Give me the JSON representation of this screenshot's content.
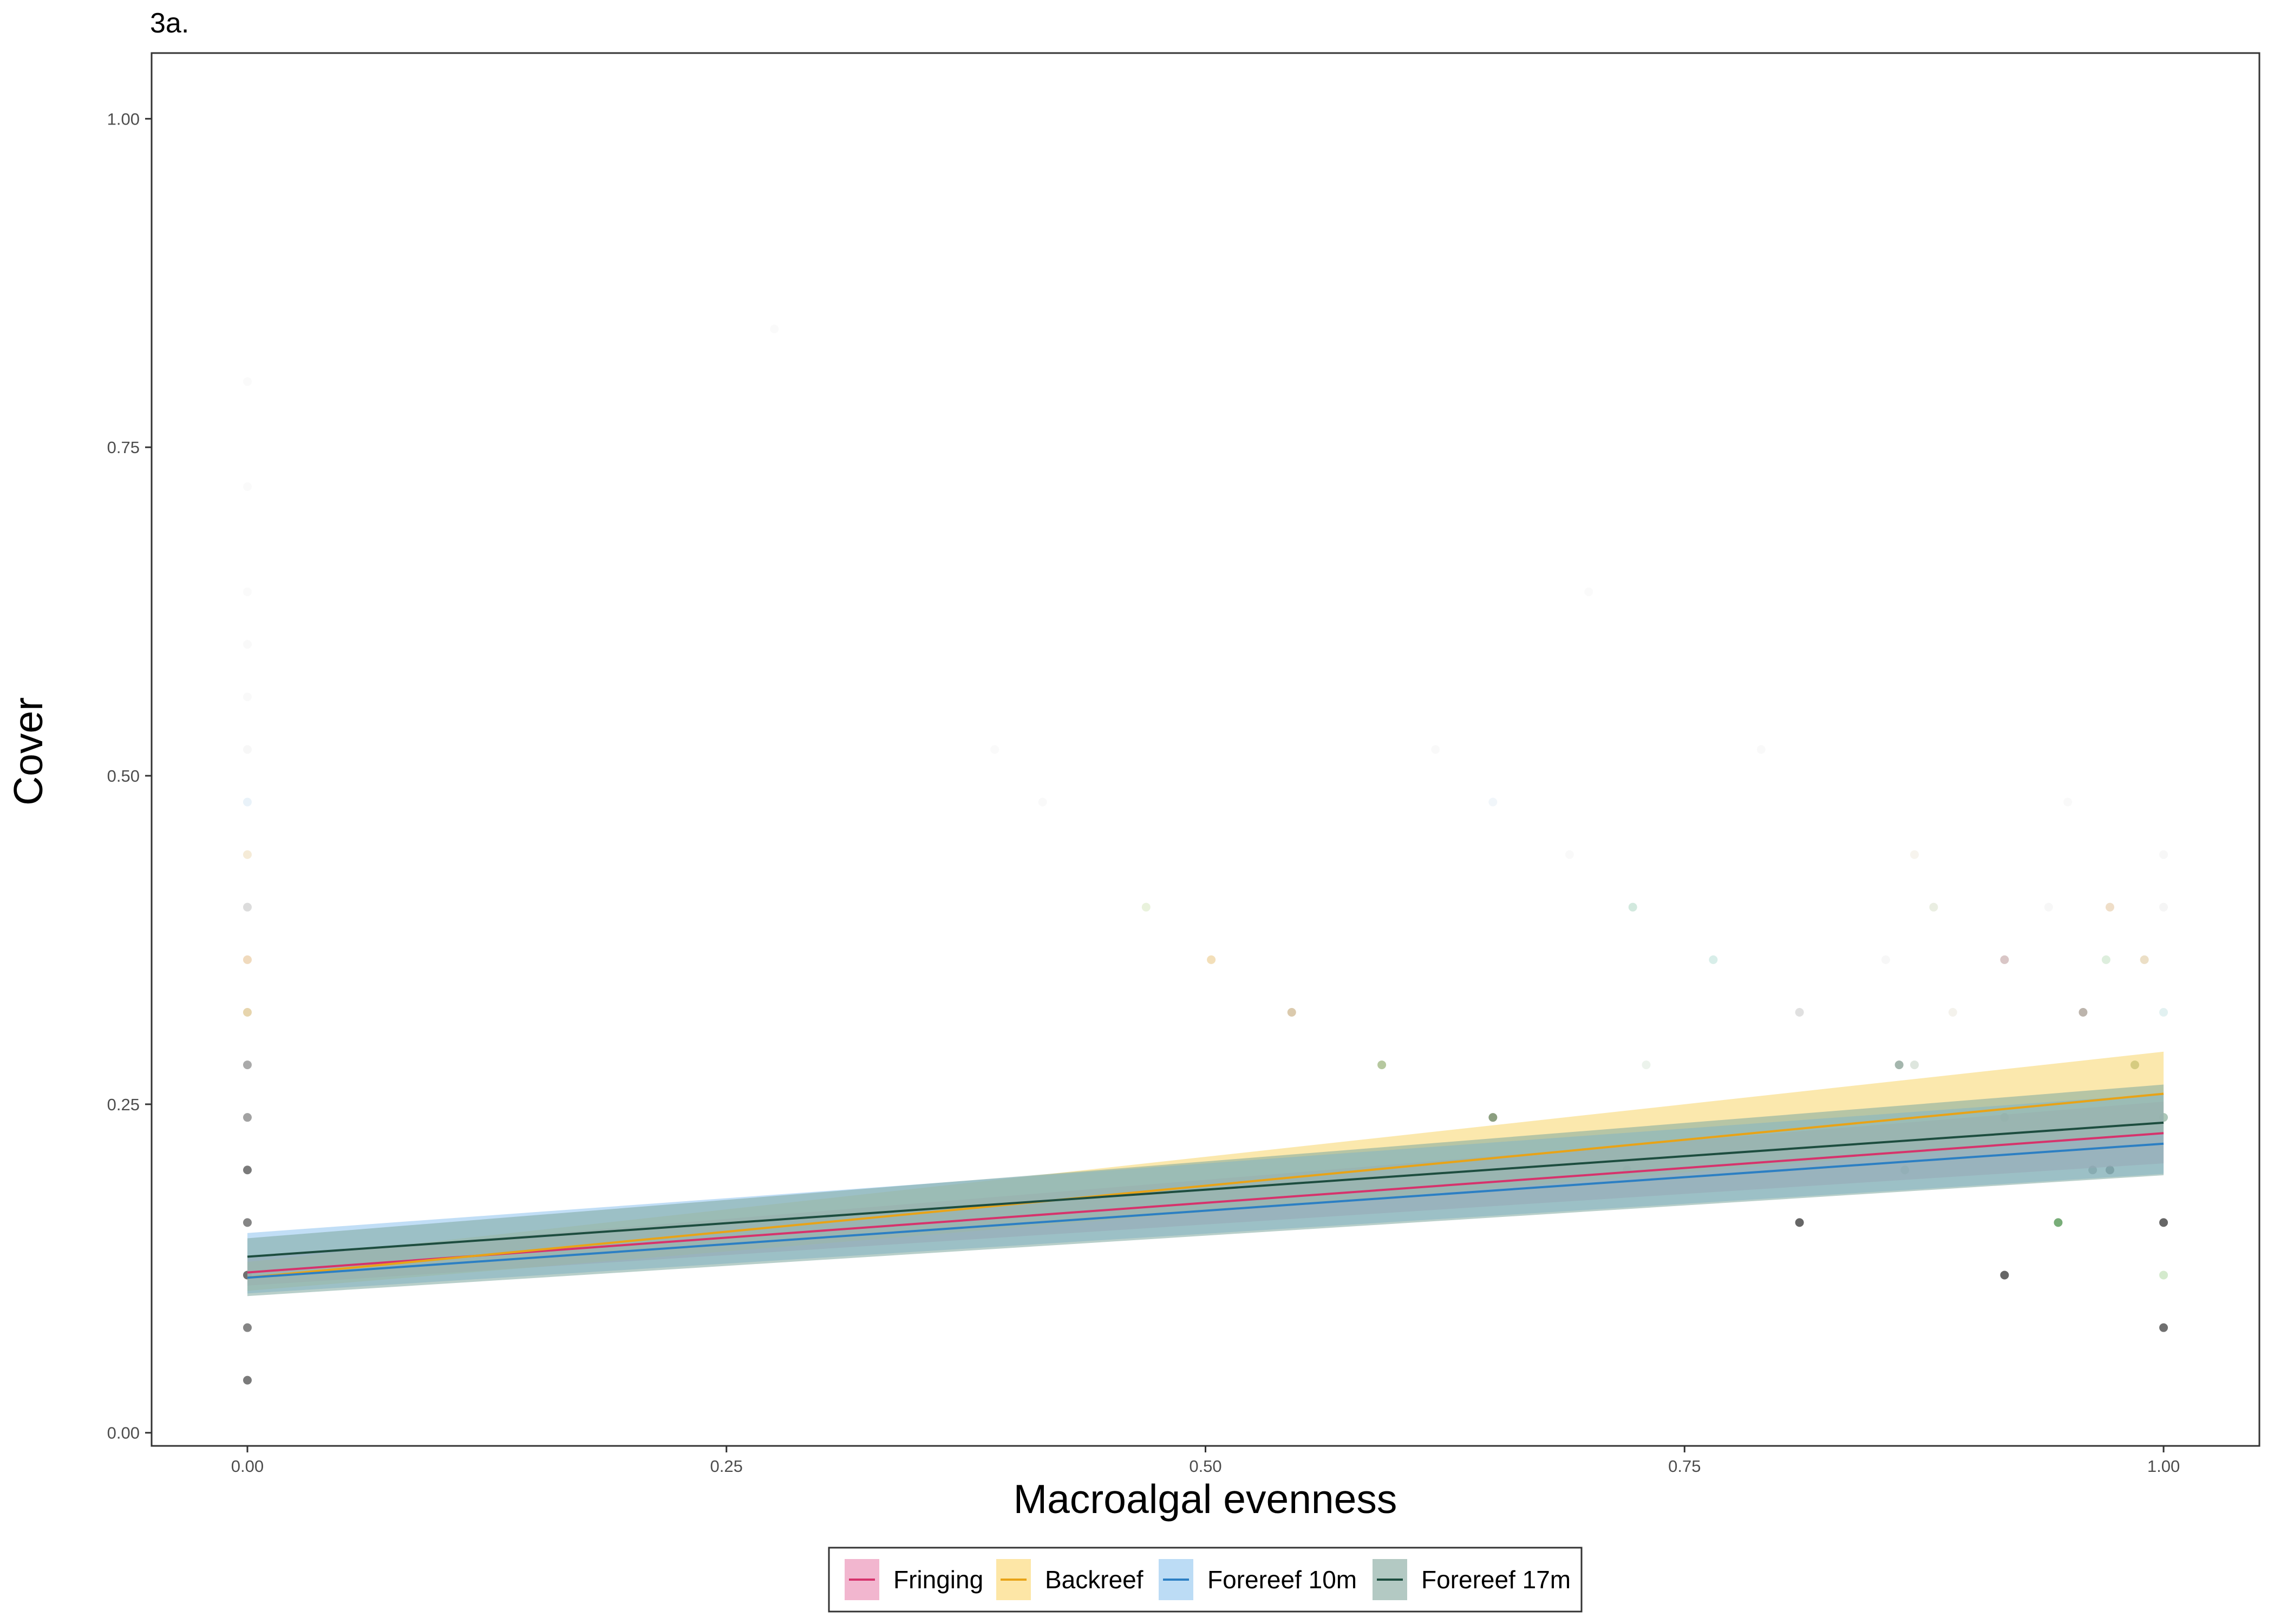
{
  "panel_tag": "3a.",
  "chart_data": {
    "type": "line",
    "title": "",
    "xlabel": "Macroalgal evenness",
    "ylabel": "Cover",
    "xlim": [
      -0.05,
      1.05
    ],
    "ylim": [
      -0.01,
      1.05
    ],
    "x_ticks": [
      0,
      0.25,
      0.5,
      0.75,
      1
    ],
    "x_tick_labels": [
      "0.00",
      "0.25",
      "0.50",
      "0.75",
      "1.00"
    ],
    "y_ticks": [
      0,
      0.25,
      0.5,
      0.75,
      1
    ],
    "y_tick_labels": [
      "0.00",
      "0.25",
      "0.50",
      "0.75",
      "1.00"
    ],
    "grid": false,
    "legend_position": "bottom",
    "series": [
      {
        "name": "Fringing",
        "color": "#d6336c",
        "fill": "#e78ab0",
        "x": [
          0,
          1
        ],
        "y": [
          0.122,
          0.228
        ],
        "lower": [
          0.112,
          0.205
        ],
        "upper": [
          0.133,
          0.252
        ]
      },
      {
        "name": "Backreef",
        "color": "#e8a317",
        "fill": "#f7d56a",
        "x": [
          0,
          1
        ],
        "y": [
          0.118,
          0.258
        ],
        "lower": [
          0.108,
          0.228
        ],
        "upper": [
          0.13,
          0.29
        ]
      },
      {
        "name": "Forereef 10m",
        "color": "#2c7fc3",
        "fill": "#8ec3ee",
        "x": [
          0,
          1
        ],
        "y": [
          0.118,
          0.22
        ],
        "lower": [
          0.106,
          0.197
        ],
        "upper": [
          0.152,
          0.258
        ]
      },
      {
        "name": "Forereef 17m",
        "color": "#1d4d3f",
        "fill": "#7ea89e",
        "x": [
          0,
          1
        ],
        "y": [
          0.134,
          0.236
        ],
        "lower": [
          0.104,
          0.196
        ],
        "upper": [
          0.148,
          0.265
        ]
      }
    ],
    "points": [
      {
        "x": 0,
        "y": 0.04,
        "c": "#333333",
        "a": 0.65
      },
      {
        "x": 0,
        "y": 0.08,
        "c": "#333333",
        "a": 0.6
      },
      {
        "x": 0,
        "y": 0.12,
        "c": "#333333",
        "a": 0.7
      },
      {
        "x": 0,
        "y": 0.16,
        "c": "#333333",
        "a": 0.6
      },
      {
        "x": 0,
        "y": 0.2,
        "c": "#333333",
        "a": 0.65
      },
      {
        "x": 0,
        "y": 0.24,
        "c": "#555555",
        "a": 0.55
      },
      {
        "x": 0,
        "y": 0.28,
        "c": "#555555",
        "a": 0.5
      },
      {
        "x": 0,
        "y": 0.32,
        "c": "#c9a24a",
        "a": 0.45
      },
      {
        "x": 0,
        "y": 0.36,
        "c": "#d9a35a",
        "a": 0.4
      },
      {
        "x": 0,
        "y": 0.4,
        "c": "#8a8a8a",
        "a": 0.3
      },
      {
        "x": 0,
        "y": 0.44,
        "c": "#d9b060",
        "a": 0.25
      },
      {
        "x": 0,
        "y": 0.48,
        "c": "#8fbce0",
        "a": 0.2
      },
      {
        "x": 0,
        "y": 0.52,
        "c": "#cccccc",
        "a": 0.15
      },
      {
        "x": 0,
        "y": 0.56,
        "c": "#cccccc",
        "a": 0.12
      },
      {
        "x": 0,
        "y": 0.6,
        "c": "#cccccc",
        "a": 0.12
      },
      {
        "x": 0,
        "y": 0.64,
        "c": "#cccccc",
        "a": 0.1
      },
      {
        "x": 0,
        "y": 0.72,
        "c": "#cccccc",
        "a": 0.1
      },
      {
        "x": 0,
        "y": 0.8,
        "c": "#cccccc",
        "a": 0.1
      },
      {
        "x": 0.469,
        "y": 0.4,
        "c": "#b5d38a",
        "a": 0.3
      },
      {
        "x": 0.503,
        "y": 0.36,
        "c": "#e0b050",
        "a": 0.4
      },
      {
        "x": 0.545,
        "y": 0.32,
        "c": "#b08a4a",
        "a": 0.45
      },
      {
        "x": 0.592,
        "y": 0.28,
        "c": "#7a9a50",
        "a": 0.55
      },
      {
        "x": 0.65,
        "y": 0.24,
        "c": "#4d6a3a",
        "a": 0.65
      },
      {
        "x": 0.65,
        "y": 0.48,
        "c": "#b8d0e8",
        "a": 0.2
      },
      {
        "x": 0.72,
        "y": 0.2,
        "c": "#555555",
        "a": 0.45
      },
      {
        "x": 0.723,
        "y": 0.4,
        "c": "#7fbfa0",
        "a": 0.35
      },
      {
        "x": 0.765,
        "y": 0.36,
        "c": "#8ecfbf",
        "a": 0.35
      },
      {
        "x": 0.81,
        "y": 0.16,
        "c": "#333333",
        "a": 0.75
      },
      {
        "x": 0.81,
        "y": 0.32,
        "c": "#999999",
        "a": 0.3
      },
      {
        "x": 0.862,
        "y": 0.28,
        "c": "#5a7a6a",
        "a": 0.55
      },
      {
        "x": 0.865,
        "y": 0.2,
        "c": "#6a9a70",
        "a": 0.45
      },
      {
        "x": 0.88,
        "y": 0.4,
        "c": "#b8c8a0",
        "a": 0.3
      },
      {
        "x": 0.917,
        "y": 0.12,
        "c": "#333333",
        "a": 0.75
      },
      {
        "x": 0.917,
        "y": 0.24,
        "c": "#8a6a5a",
        "a": 0.5
      },
      {
        "x": 0.917,
        "y": 0.36,
        "c": "#a07070",
        "a": 0.4
      },
      {
        "x": 0.945,
        "y": 0.16,
        "c": "#3f8a3f",
        "a": 0.7
      },
      {
        "x": 0.958,
        "y": 0.32,
        "c": "#7a6a5a",
        "a": 0.5
      },
      {
        "x": 0.963,
        "y": 0.2,
        "c": "#4a4a4a",
        "a": 0.55
      },
      {
        "x": 0.97,
        "y": 0.36,
        "c": "#9fcf9f",
        "a": 0.35
      },
      {
        "x": 0.972,
        "y": 0.2,
        "c": "#333333",
        "a": 0.7
      },
      {
        "x": 0.972,
        "y": 0.4,
        "c": "#d0a060",
        "a": 0.35
      },
      {
        "x": 0.985,
        "y": 0.28,
        "c": "#6a8a4a",
        "a": 0.55
      },
      {
        "x": 0.99,
        "y": 0.36,
        "c": "#d0b070",
        "a": 0.4
      },
      {
        "x": 1.0,
        "y": 0.08,
        "c": "#333333",
        "a": 0.7
      },
      {
        "x": 1.0,
        "y": 0.12,
        "c": "#9fd090",
        "a": 0.45
      },
      {
        "x": 1.0,
        "y": 0.16,
        "c": "#333333",
        "a": 0.75
      },
      {
        "x": 1.0,
        "y": 0.24,
        "c": "#6a9a80",
        "a": 0.55
      },
      {
        "x": 1.0,
        "y": 0.32,
        "c": "#9fcfcf",
        "a": 0.3
      },
      {
        "x": 1.0,
        "y": 0.4,
        "c": "#cccccc",
        "a": 0.2
      },
      {
        "x": 1.0,
        "y": 0.44,
        "c": "#cccccc",
        "a": 0.15
      },
      {
        "x": 0.855,
        "y": 0.36,
        "c": "#cccccc",
        "a": 0.15
      },
      {
        "x": 0.87,
        "y": 0.44,
        "c": "#d8c8a8",
        "a": 0.2
      },
      {
        "x": 0.89,
        "y": 0.32,
        "c": "#c8c0a0",
        "a": 0.2
      },
      {
        "x": 0.94,
        "y": 0.4,
        "c": "#cccccc",
        "a": 0.15
      },
      {
        "x": 0.95,
        "y": 0.48,
        "c": "#cccccc",
        "a": 0.12
      },
      {
        "x": 0.79,
        "y": 0.52,
        "c": "#cccccc",
        "a": 0.12
      },
      {
        "x": 0.62,
        "y": 0.52,
        "c": "#cccccc",
        "a": 0.12
      },
      {
        "x": 0.415,
        "y": 0.48,
        "c": "#cccccc",
        "a": 0.12
      },
      {
        "x": 0.39,
        "y": 0.52,
        "c": "#cccccc",
        "a": 0.1
      },
      {
        "x": 0.69,
        "y": 0.44,
        "c": "#cccccc",
        "a": 0.12
      },
      {
        "x": 0.7,
        "y": 0.64,
        "c": "#cccccc",
        "a": 0.1
      },
      {
        "x": 0.275,
        "y": 0.84,
        "c": "#cccccc",
        "a": 0.1
      },
      {
        "x": 0.73,
        "y": 0.28,
        "c": "#bfd8c0",
        "a": 0.3
      },
      {
        "x": 0.87,
        "y": 0.28,
        "c": "#a0b8a0",
        "a": 0.35
      }
    ]
  },
  "legend": {
    "items": [
      {
        "label": "Fringing",
        "line": "#d6336c",
        "fill": "#f2b6cf"
      },
      {
        "label": "Backreef",
        "line": "#e8a317",
        "fill": "#fde6a6"
      },
      {
        "label": "Forereef 10m",
        "line": "#2c7fc3",
        "fill": "#bcdcf5"
      },
      {
        "label": "Forereef 17m",
        "line": "#1d4d3f",
        "fill": "#b3c9c3"
      }
    ]
  }
}
